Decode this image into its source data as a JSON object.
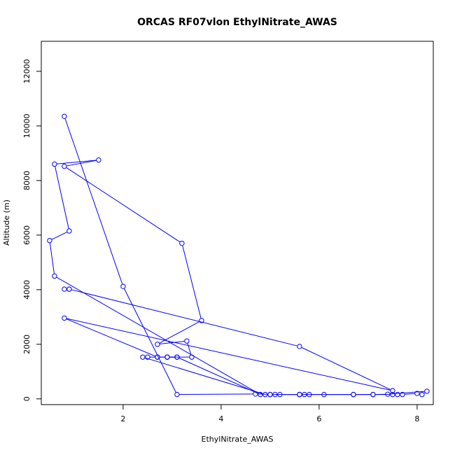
{
  "chart_data": {
    "type": "line",
    "title": "ORCAS RF07vlon EthylNitrate_AWAS",
    "xlabel": "EthylNitrate_AWAS",
    "ylabel": "Altitude (m)",
    "xlim": [
      0.33,
      8.33
    ],
    "ylim": [
      -210,
      13100
    ],
    "xticks": [
      2,
      4,
      6,
      8
    ],
    "yticks": [
      0,
      2000,
      4000,
      6000,
      8000,
      10000,
      12000
    ],
    "grid": false,
    "legend": "none",
    "series_color": "#0000ff",
    "series": [
      {
        "marker": "open-circle",
        "x": [
          0.8,
          2.0,
          3.1,
          4.7,
          5.0,
          5.1,
          5.2,
          5.6,
          5.7,
          5.8,
          6.1,
          6.7,
          7.1,
          7.5,
          7.6,
          7.7,
          8.0,
          8.1,
          8.2,
          7.4,
          7.1,
          6.7,
          5.6,
          5.6,
          5.0,
          4.9,
          2.4,
          2.5,
          2.7,
          2.9,
          3.1,
          2.9,
          3.4,
          3.3,
          2.7,
          3.6,
          3.2,
          0.8,
          1.5,
          0.6,
          0.9,
          0.5,
          0.6,
          4.8,
          3.1,
          2.9,
          2.7,
          0.8,
          7.5,
          5.6,
          0.9,
          0.9,
          0.8
        ],
        "y": [
          10350,
          4120,
          160,
          180,
          160,
          160,
          160,
          160,
          160,
          160,
          160,
          160,
          160,
          160,
          160,
          160,
          200,
          160,
          280,
          170,
          160,
          160,
          160,
          160,
          160,
          160,
          1530,
          1530,
          1530,
          1530,
          1530,
          1530,
          1530,
          2120,
          2000,
          2870,
          5700,
          8520,
          8750,
          8600,
          6150,
          5800,
          4500,
          160,
          1530,
          1530,
          1530,
          2960,
          300,
          1920,
          4020,
          4020,
          4020
        ]
      }
    ]
  }
}
